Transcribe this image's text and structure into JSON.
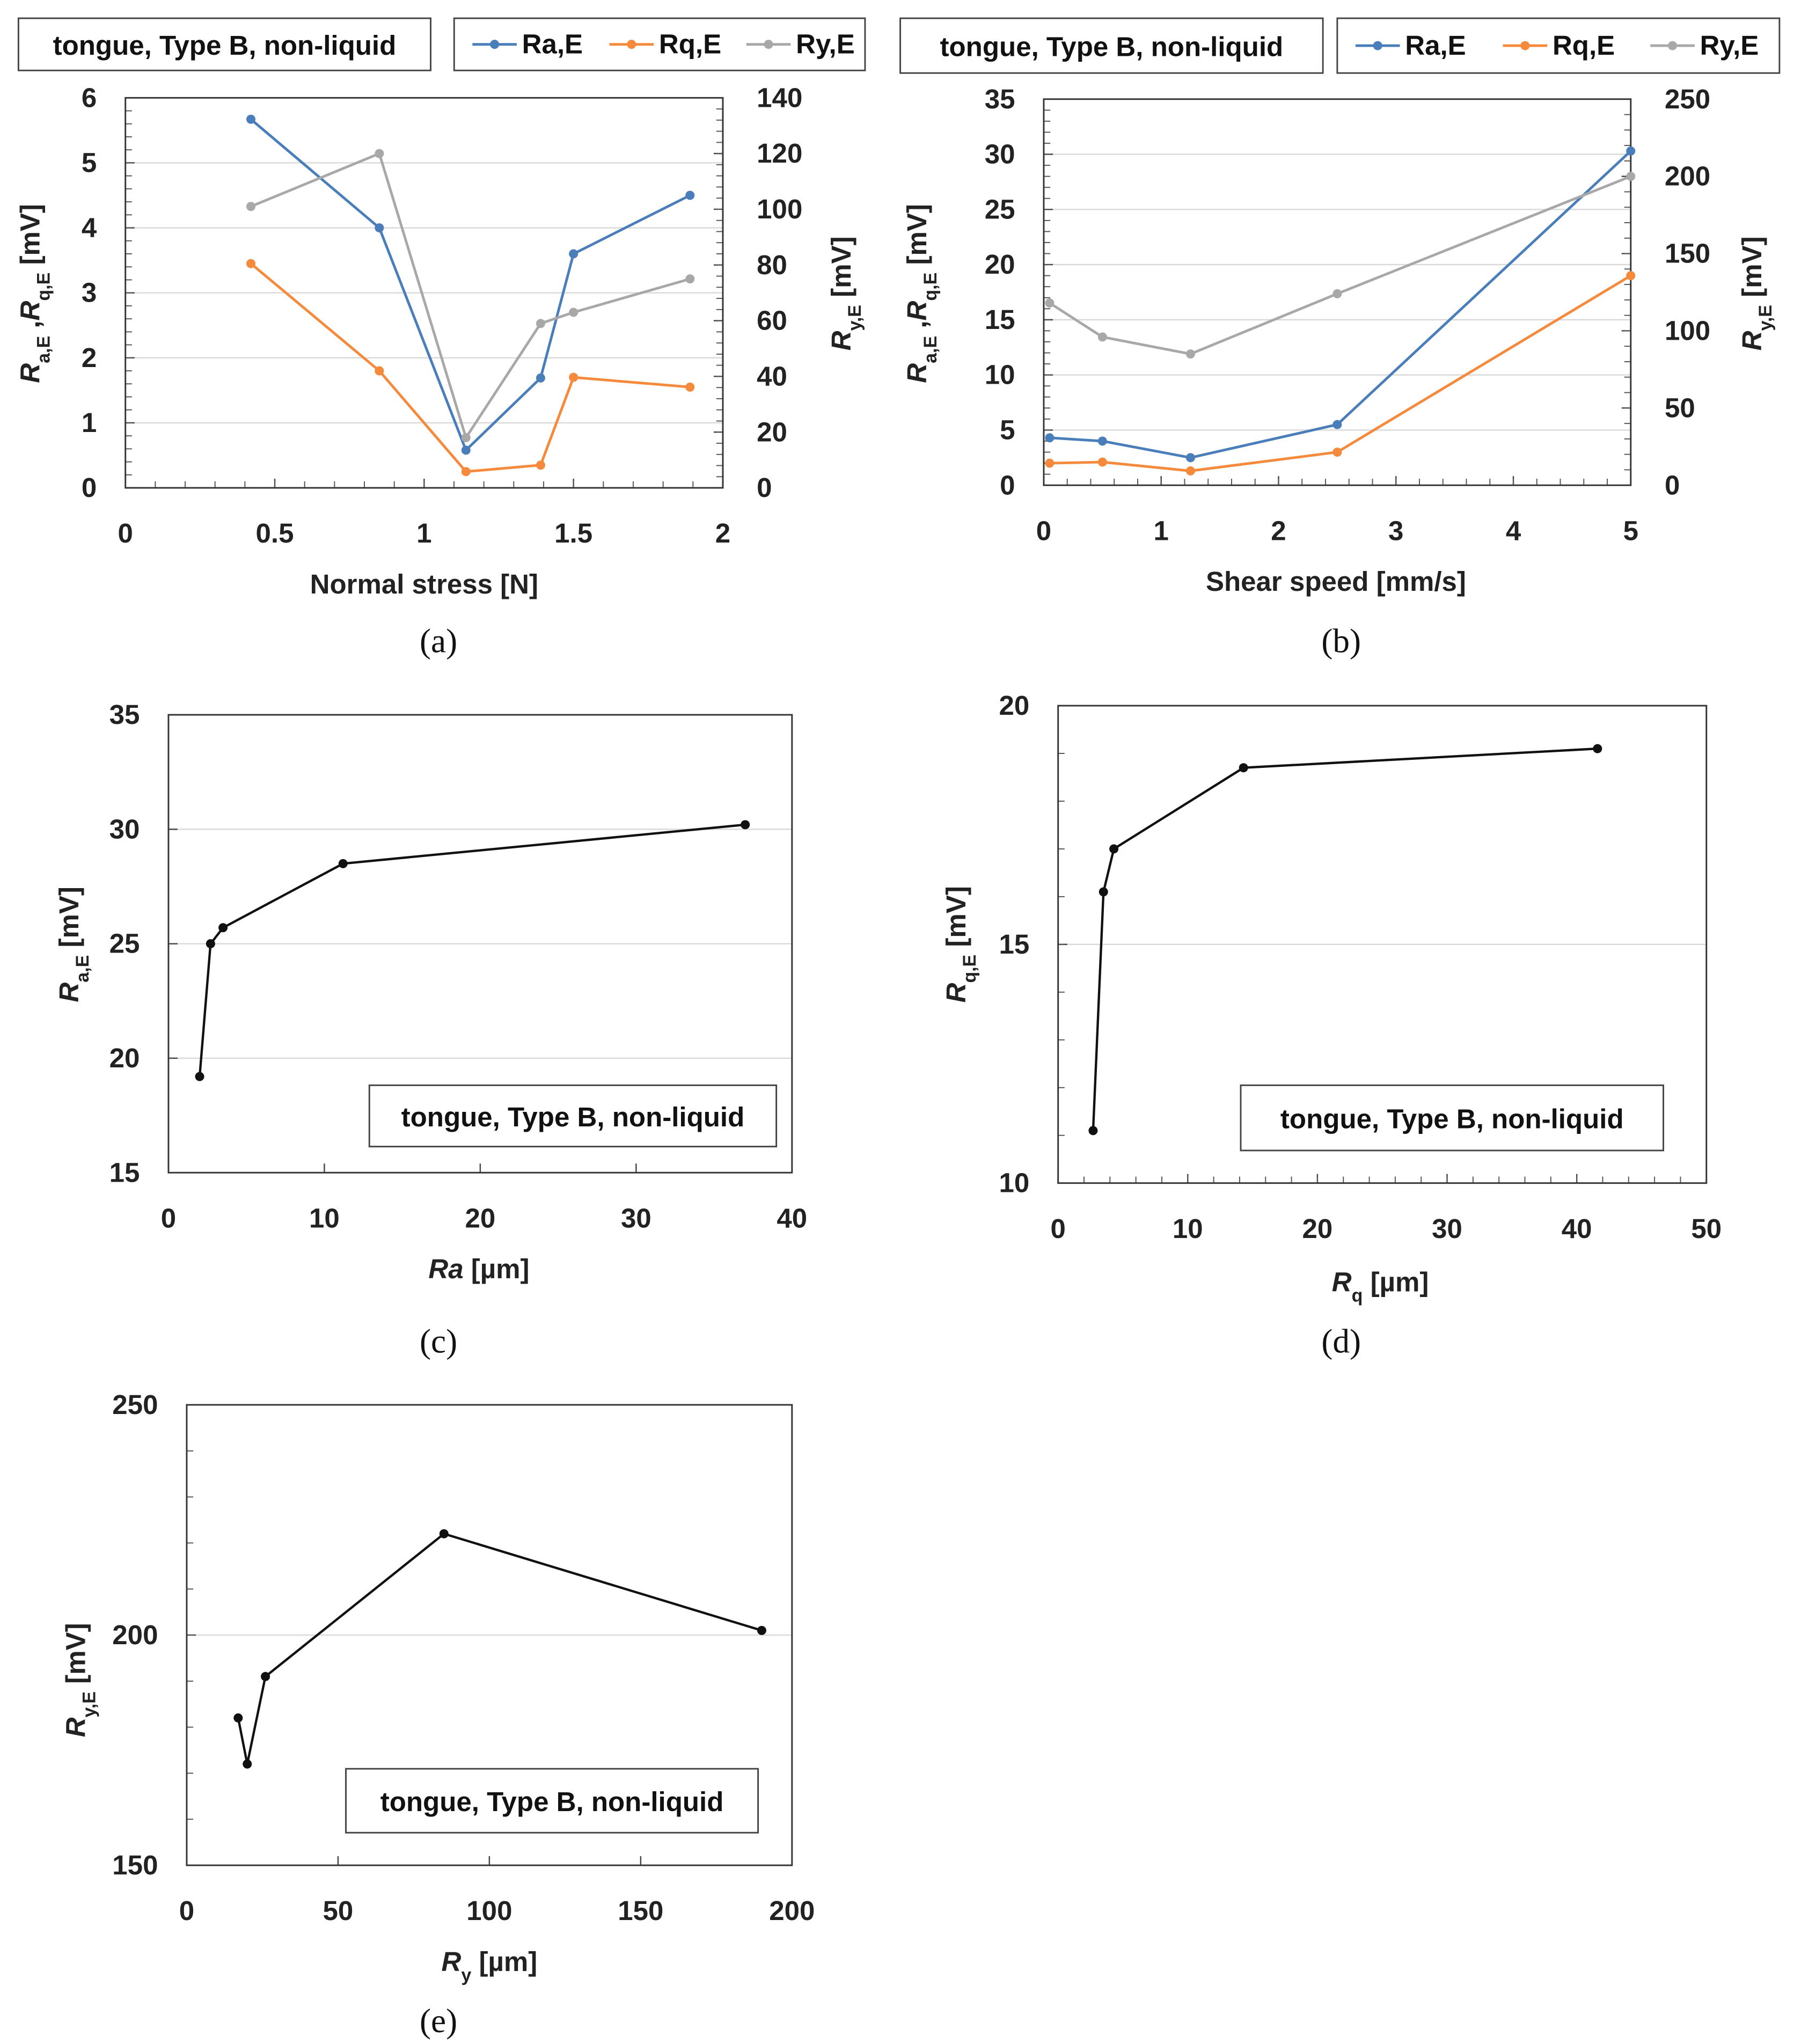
{
  "annotation": "tongue, Type B, non-liquid",
  "chart_data": [
    {
      "type": "line",
      "caption": "(a)",
      "xlabel": "Normal stress   [N]",
      "ylabel": [
        {
          "t": "R",
          "i": true
        },
        {
          "t": "a,E",
          "s": true
        },
        {
          "t": " ,"
        },
        {
          "t": "R",
          "i": true
        },
        {
          "t": "q,E",
          "s": true
        },
        {
          "t": "  [mV]"
        }
      ],
      "y2label": [
        {
          "t": "R",
          "i": true
        },
        {
          "t": "y,E",
          "s": true
        },
        {
          "t": "  [mV]"
        }
      ],
      "xlim": [
        0,
        2
      ],
      "ylim": [
        0,
        6
      ],
      "y2lim": [
        0,
        140
      ],
      "xticks": [
        "0",
        "0.5",
        "1",
        "1.5",
        "2"
      ],
      "yticks": [
        "0",
        "1",
        "2",
        "3",
        "4",
        "5",
        "6"
      ],
      "y2ticks": [
        "0",
        "20",
        "40",
        "60",
        "80",
        "100",
        "120",
        "140"
      ],
      "legend": [
        "Ra,E",
        "Rq,E",
        "Ry,E"
      ],
      "x": [
        0.42,
        0.85,
        1.14,
        1.39,
        1.5,
        1.89
      ],
      "series": [
        {
          "name": "Ra,E",
          "axis": "left",
          "color": "#4a7ebb",
          "values": [
            5.67,
            4.0,
            0.58,
            1.69,
            3.6,
            4.5
          ]
        },
        {
          "name": "Rq,E",
          "axis": "left",
          "color": "#f58a3c",
          "values": [
            3.45,
            1.8,
            0.25,
            0.35,
            1.7,
            1.55
          ]
        },
        {
          "name": "Ry,E",
          "axis": "right",
          "color": "#a8a8a8",
          "values": [
            101,
            120,
            18,
            59,
            63,
            75
          ]
        }
      ]
    },
    {
      "type": "line",
      "caption": "(b)",
      "xlabel": "Shear speed   [mm/s]",
      "ylabel": [
        {
          "t": "R",
          "i": true
        },
        {
          "t": "a,E",
          "s": true
        },
        {
          "t": " ,"
        },
        {
          "t": "R",
          "i": true
        },
        {
          "t": "q,E",
          "s": true
        },
        {
          "t": "  [mV]"
        }
      ],
      "y2label": [
        {
          "t": "R",
          "i": true
        },
        {
          "t": "y,E",
          "s": true
        },
        {
          "t": "  [mV]"
        }
      ],
      "xlim": [
        0,
        5
      ],
      "ylim": [
        0,
        35
      ],
      "y2lim": [
        0,
        250
      ],
      "xticks": [
        "0",
        "1",
        "2",
        "3",
        "4",
        "5"
      ],
      "yticks": [
        "0",
        "5",
        "10",
        "15",
        "20",
        "25",
        "30",
        "35"
      ],
      "y2ticks": [
        "0",
        "50",
        "100",
        "150",
        "200",
        "250"
      ],
      "legend": [
        "Ra,E",
        "Rq,E",
        "Ry,E"
      ],
      "x": [
        0.05,
        0.5,
        1.25,
        2.5,
        5.0
      ],
      "series": [
        {
          "name": "Ra,E",
          "axis": "left",
          "color": "#4a7ebb",
          "values": [
            4.3,
            4.0,
            2.5,
            5.5,
            30.3
          ]
        },
        {
          "name": "Rq,E",
          "axis": "left",
          "color": "#f58a3c",
          "values": [
            2.0,
            2.1,
            1.3,
            3.0,
            19.0
          ]
        },
        {
          "name": "Ry,E",
          "axis": "right",
          "color": "#a8a8a8",
          "values": [
            118,
            96,
            85,
            124,
            200
          ]
        }
      ]
    },
    {
      "type": "line",
      "caption": "(c)",
      "xlabel": [
        {
          "t": "Ra",
          "i": true
        },
        {
          "t": "   [µm]"
        }
      ],
      "ylabel": [
        {
          "t": "R",
          "i": true
        },
        {
          "t": "a,E",
          "s": true
        },
        {
          "t": "  [mV]"
        }
      ],
      "xlim": [
        0,
        40
      ],
      "ylim": [
        15,
        35
      ],
      "xticks": [
        "0",
        "10",
        "20",
        "30",
        "40"
      ],
      "yticks": [
        "15",
        "20",
        "25",
        "30",
        "35"
      ],
      "x": [
        2.0,
        2.7,
        3.5,
        11.2,
        37.0
      ],
      "series": [
        {
          "name": "Ra,E vs Ra",
          "color": "#111111",
          "values": [
            19.2,
            25.0,
            25.7,
            28.5,
            30.2
          ]
        }
      ]
    },
    {
      "type": "line",
      "caption": "(d)",
      "xlabel": [
        {
          "t": "R",
          "i": true
        },
        {
          "t": "q",
          "s": true
        },
        {
          "t": "    [µm]"
        }
      ],
      "ylabel": [
        {
          "t": "R",
          "i": true
        },
        {
          "t": "q,E",
          "s": true
        },
        {
          "t": "  [mV]"
        }
      ],
      "xlim": [
        0,
        50
      ],
      "ylim": [
        10,
        20
      ],
      "xticks": [
        "0",
        "10",
        "20",
        "30",
        "40",
        "50"
      ],
      "yticks": [
        "10",
        "15",
        "20"
      ],
      "x": [
        2.7,
        3.5,
        4.3,
        14.3,
        41.6
      ],
      "series": [
        {
          "name": "Rq,E vs Rq",
          "color": "#111111",
          "values": [
            11.1,
            16.1,
            17.0,
            18.7,
            19.1
          ]
        }
      ]
    },
    {
      "type": "line",
      "caption": "(e)",
      "xlabel": [
        {
          "t": "R",
          "i": true
        },
        {
          "t": "y",
          "s": true
        },
        {
          "t": "    [µm]"
        }
      ],
      "ylabel": [
        {
          "t": "R",
          "i": true
        },
        {
          "t": "y,E",
          "s": true
        },
        {
          "t": "  [mV]"
        }
      ],
      "xlim": [
        0,
        200
      ],
      "ylim": [
        150,
        250
      ],
      "xticks": [
        "0",
        "50",
        "100",
        "150",
        "200"
      ],
      "yticks": [
        "150",
        "200",
        "250"
      ],
      "x": [
        17,
        20,
        26,
        85,
        190
      ],
      "series": [
        {
          "name": "Ry,E vs Ry",
          "color": "#111111",
          "values": [
            182,
            172,
            191,
            222,
            201
          ]
        }
      ]
    }
  ]
}
